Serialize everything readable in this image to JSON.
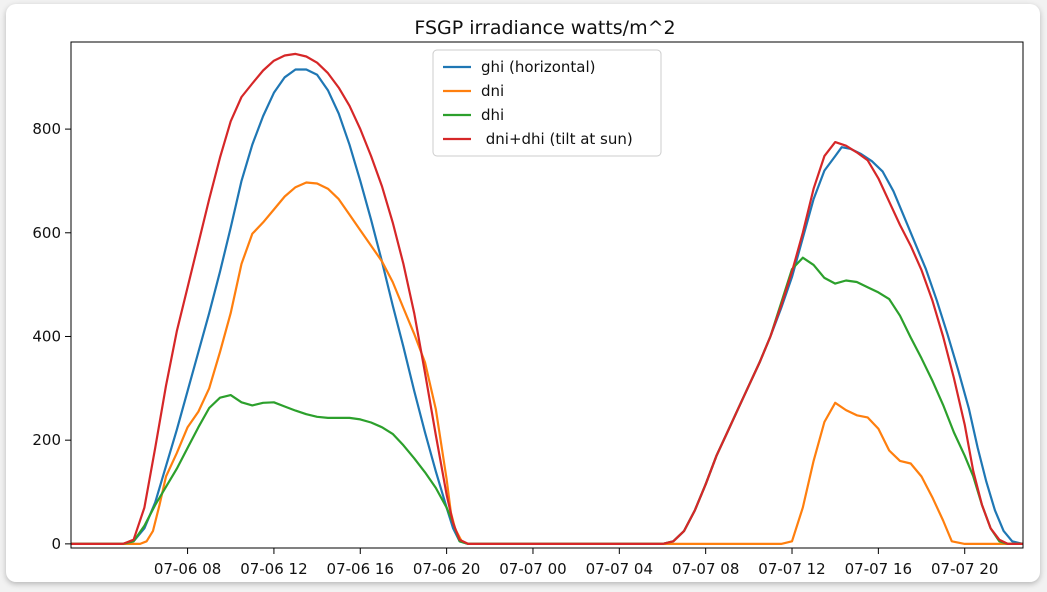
{
  "chart_data": {
    "type": "line",
    "title": "FSGP irradiance watts/m^2",
    "xlabel": "",
    "ylabel": "",
    "x_unit": "hours from 07-06 00:00",
    "xlim": [
      2.6,
      46.7
    ],
    "ylim": [
      -8,
      968
    ],
    "x_ticks": [
      {
        "x": 8,
        "label": "07-06 08"
      },
      {
        "x": 12,
        "label": "07-06 12"
      },
      {
        "x": 16,
        "label": "07-06 16"
      },
      {
        "x": 20,
        "label": "07-06 20"
      },
      {
        "x": 24,
        "label": "07-07 00"
      },
      {
        "x": 28,
        "label": "07-07 04"
      },
      {
        "x": 32,
        "label": "07-07 08"
      },
      {
        "x": 36,
        "label": "07-07 12"
      },
      {
        "x": 40,
        "label": "07-07 16"
      },
      {
        "x": 44,
        "label": "07-07 20"
      }
    ],
    "y_ticks": [
      {
        "y": 0,
        "label": "0"
      },
      {
        "y": 200,
        "label": "200"
      },
      {
        "y": 400,
        "label": "400"
      },
      {
        "y": 600,
        "label": "600"
      },
      {
        "y": 800,
        "label": "800"
      }
    ],
    "legend_position": "top-center",
    "series": [
      {
        "name": "ghi (horizontal)",
        "color": "#1f77b4",
        "points": [
          [
            2.6,
            0
          ],
          [
            4.0,
            0
          ],
          [
            5.0,
            0
          ],
          [
            5.5,
            5
          ],
          [
            6.0,
            30
          ],
          [
            6.5,
            80
          ],
          [
            7.0,
            150
          ],
          [
            7.5,
            220
          ],
          [
            8.0,
            295
          ],
          [
            8.5,
            370
          ],
          [
            9.0,
            445
          ],
          [
            9.5,
            525
          ],
          [
            10.0,
            610
          ],
          [
            10.5,
            700
          ],
          [
            11.0,
            770
          ],
          [
            11.5,
            825
          ],
          [
            12.0,
            870
          ],
          [
            12.5,
            900
          ],
          [
            13.0,
            915
          ],
          [
            13.5,
            915
          ],
          [
            14.0,
            905
          ],
          [
            14.5,
            875
          ],
          [
            15.0,
            830
          ],
          [
            15.5,
            770
          ],
          [
            16.0,
            700
          ],
          [
            16.5,
            625
          ],
          [
            17.0,
            545
          ],
          [
            17.5,
            460
          ],
          [
            18.0,
            380
          ],
          [
            18.5,
            295
          ],
          [
            19.0,
            215
          ],
          [
            19.5,
            140
          ],
          [
            20.0,
            70
          ],
          [
            20.3,
            30
          ],
          [
            20.6,
            5
          ],
          [
            21.0,
            0
          ],
          [
            24.0,
            0
          ],
          [
            28.0,
            0
          ],
          [
            30.0,
            0
          ],
          [
            30.5,
            5
          ],
          [
            31.0,
            25
          ],
          [
            31.5,
            65
          ],
          [
            32.0,
            115
          ],
          [
            32.5,
            170
          ],
          [
            33.0,
            215
          ],
          [
            33.5,
            260
          ],
          [
            34.0,
            305
          ],
          [
            34.5,
            350
          ],
          [
            35.0,
            400
          ],
          [
            35.5,
            455
          ],
          [
            36.0,
            515
          ],
          [
            36.5,
            590
          ],
          [
            37.0,
            665
          ],
          [
            37.5,
            720
          ],
          [
            38.0,
            748
          ],
          [
            38.3,
            765
          ],
          [
            38.7,
            762
          ],
          [
            39.2,
            752
          ],
          [
            39.7,
            738
          ],
          [
            40.2,
            718
          ],
          [
            40.7,
            680
          ],
          [
            41.2,
            630
          ],
          [
            41.7,
            580
          ],
          [
            42.2,
            530
          ],
          [
            42.7,
            470
          ],
          [
            43.2,
            405
          ],
          [
            43.7,
            335
          ],
          [
            44.2,
            260
          ],
          [
            44.6,
            185
          ],
          [
            45.0,
            120
          ],
          [
            45.4,
            65
          ],
          [
            45.8,
            25
          ],
          [
            46.2,
            5
          ],
          [
            46.7,
            0
          ]
        ]
      },
      {
        "name": "dni",
        "color": "#ff7f0e",
        "points": [
          [
            2.6,
            0
          ],
          [
            4.0,
            0
          ],
          [
            5.0,
            0
          ],
          [
            5.8,
            0
          ],
          [
            6.1,
            5
          ],
          [
            6.4,
            25
          ],
          [
            6.7,
            75
          ],
          [
            7.0,
            130
          ],
          [
            7.5,
            175
          ],
          [
            8.0,
            225
          ],
          [
            8.5,
            255
          ],
          [
            9.0,
            300
          ],
          [
            9.5,
            370
          ],
          [
            10.0,
            445
          ],
          [
            10.5,
            540
          ],
          [
            11.0,
            598
          ],
          [
            11.5,
            620
          ],
          [
            12.0,
            645
          ],
          [
            12.5,
            670
          ],
          [
            13.0,
            688
          ],
          [
            13.5,
            697
          ],
          [
            14.0,
            695
          ],
          [
            14.5,
            685
          ],
          [
            15.0,
            665
          ],
          [
            15.5,
            635
          ],
          [
            16.0,
            605
          ],
          [
            16.5,
            575
          ],
          [
            17.0,
            545
          ],
          [
            17.5,
            505
          ],
          [
            18.0,
            455
          ],
          [
            18.5,
            405
          ],
          [
            19.0,
            350
          ],
          [
            19.5,
            260
          ],
          [
            20.0,
            125
          ],
          [
            20.2,
            60
          ],
          [
            20.4,
            28
          ],
          [
            20.7,
            5
          ],
          [
            21.0,
            0
          ],
          [
            24.0,
            0
          ],
          [
            28.0,
            0
          ],
          [
            34.0,
            0
          ],
          [
            35.5,
            0
          ],
          [
            36.0,
            5
          ],
          [
            36.5,
            70
          ],
          [
            37.0,
            160
          ],
          [
            37.5,
            235
          ],
          [
            38.0,
            272
          ],
          [
            38.5,
            258
          ],
          [
            39.0,
            248
          ],
          [
            39.5,
            244
          ],
          [
            40.0,
            222
          ],
          [
            40.5,
            180
          ],
          [
            41.0,
            160
          ],
          [
            41.5,
            155
          ],
          [
            42.0,
            130
          ],
          [
            42.5,
            90
          ],
          [
            43.0,
            45
          ],
          [
            43.4,
            5
          ],
          [
            44.0,
            0
          ],
          [
            46.7,
            0
          ]
        ]
      },
      {
        "name": "dhi",
        "color": "#2ca02c",
        "points": [
          [
            2.6,
            0
          ],
          [
            4.0,
            0
          ],
          [
            5.0,
            0
          ],
          [
            5.5,
            5
          ],
          [
            6.0,
            35
          ],
          [
            6.5,
            75
          ],
          [
            7.0,
            110
          ],
          [
            7.5,
            145
          ],
          [
            8.0,
            185
          ],
          [
            8.5,
            225
          ],
          [
            9.0,
            262
          ],
          [
            9.5,
            282
          ],
          [
            10.0,
            287
          ],
          [
            10.5,
            273
          ],
          [
            11.0,
            267
          ],
          [
            11.5,
            272
          ],
          [
            12.0,
            273
          ],
          [
            12.5,
            265
          ],
          [
            13.0,
            257
          ],
          [
            13.5,
            250
          ],
          [
            14.0,
            245
          ],
          [
            14.5,
            243
          ],
          [
            15.0,
            243
          ],
          [
            15.5,
            243
          ],
          [
            16.0,
            240
          ],
          [
            16.5,
            234
          ],
          [
            17.0,
            225
          ],
          [
            17.5,
            212
          ],
          [
            18.0,
            190
          ],
          [
            18.5,
            165
          ],
          [
            19.0,
            138
          ],
          [
            19.5,
            108
          ],
          [
            20.0,
            70
          ],
          [
            20.3,
            40
          ],
          [
            20.6,
            5
          ],
          [
            21.0,
            0
          ],
          [
            24.0,
            0
          ],
          [
            28.0,
            0
          ],
          [
            30.0,
            0
          ],
          [
            30.5,
            5
          ],
          [
            31.0,
            25
          ],
          [
            31.5,
            65
          ],
          [
            32.0,
            115
          ],
          [
            32.5,
            170
          ],
          [
            33.0,
            215
          ],
          [
            33.5,
            260
          ],
          [
            34.0,
            305
          ],
          [
            34.5,
            350
          ],
          [
            35.0,
            400
          ],
          [
            35.5,
            465
          ],
          [
            36.0,
            530
          ],
          [
            36.5,
            552
          ],
          [
            37.0,
            538
          ],
          [
            37.5,
            513
          ],
          [
            38.0,
            502
          ],
          [
            38.5,
            508
          ],
          [
            39.0,
            505
          ],
          [
            39.5,
            495
          ],
          [
            40.0,
            485
          ],
          [
            40.5,
            472
          ],
          [
            41.0,
            440
          ],
          [
            41.5,
            398
          ],
          [
            42.0,
            358
          ],
          [
            42.5,
            315
          ],
          [
            43.0,
            268
          ],
          [
            43.5,
            215
          ],
          [
            44.0,
            170
          ],
          [
            44.4,
            130
          ],
          [
            44.8,
            75
          ],
          [
            45.2,
            30
          ],
          [
            45.6,
            5
          ],
          [
            46.0,
            0
          ],
          [
            46.7,
            0
          ]
        ]
      },
      {
        "name": " dni+dhi (tilt at sun)",
        "color": "#d62728",
        "points": [
          [
            2.6,
            0
          ],
          [
            4.0,
            0
          ],
          [
            5.0,
            0
          ],
          [
            5.5,
            8
          ],
          [
            6.0,
            70
          ],
          [
            6.5,
            185
          ],
          [
            7.0,
            305
          ],
          [
            7.5,
            410
          ],
          [
            8.0,
            495
          ],
          [
            8.5,
            580
          ],
          [
            9.0,
            665
          ],
          [
            9.5,
            745
          ],
          [
            10.0,
            815
          ],
          [
            10.5,
            862
          ],
          [
            11.0,
            888
          ],
          [
            11.5,
            913
          ],
          [
            12.0,
            932
          ],
          [
            12.5,
            942
          ],
          [
            13.0,
            945
          ],
          [
            13.5,
            940
          ],
          [
            14.0,
            928
          ],
          [
            14.5,
            908
          ],
          [
            15.0,
            880
          ],
          [
            15.5,
            845
          ],
          [
            16.0,
            800
          ],
          [
            16.5,
            748
          ],
          [
            17.0,
            690
          ],
          [
            17.5,
            620
          ],
          [
            18.0,
            540
          ],
          [
            18.5,
            445
          ],
          [
            19.0,
            330
          ],
          [
            19.5,
            210
          ],
          [
            20.0,
            95
          ],
          [
            20.3,
            40
          ],
          [
            20.6,
            8
          ],
          [
            21.0,
            0
          ],
          [
            24.0,
            0
          ],
          [
            28.0,
            0
          ],
          [
            30.0,
            0
          ],
          [
            30.5,
            5
          ],
          [
            31.0,
            25
          ],
          [
            31.5,
            65
          ],
          [
            32.0,
            115
          ],
          [
            32.5,
            170
          ],
          [
            33.0,
            215
          ],
          [
            33.5,
            260
          ],
          [
            34.0,
            305
          ],
          [
            34.5,
            350
          ],
          [
            35.0,
            400
          ],
          [
            35.5,
            460
          ],
          [
            36.0,
            525
          ],
          [
            36.5,
            600
          ],
          [
            37.0,
            685
          ],
          [
            37.5,
            748
          ],
          [
            38.0,
            775
          ],
          [
            38.5,
            768
          ],
          [
            39.0,
            755
          ],
          [
            39.5,
            740
          ],
          [
            40.0,
            705
          ],
          [
            40.5,
            660
          ],
          [
            41.0,
            615
          ],
          [
            41.5,
            575
          ],
          [
            42.0,
            528
          ],
          [
            42.5,
            470
          ],
          [
            43.0,
            400
          ],
          [
            43.5,
            320
          ],
          [
            44.0,
            230
          ],
          [
            44.4,
            140
          ],
          [
            44.8,
            75
          ],
          [
            45.2,
            30
          ],
          [
            45.6,
            8
          ],
          [
            46.0,
            0
          ],
          [
            46.7,
            0
          ]
        ]
      }
    ]
  }
}
